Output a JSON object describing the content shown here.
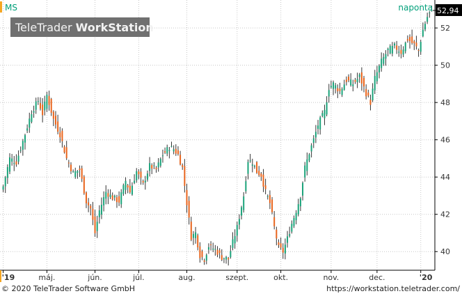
{
  "symbol": "MS",
  "interval_label": "naponta",
  "watermark": {
    "light": "TeleTrader ",
    "bold": "WorkStation"
  },
  "last_price_label": "52,94",
  "footer": {
    "copyright": "© 2020 TeleTrader Software GmbH",
    "url": "https://workstation.teletrader.com/"
  },
  "colors": {
    "up": "#1aa37a",
    "down": "#e8641c",
    "grid": "#c8c8c8",
    "axis_bar": "#f5a623",
    "label_box": "#000000",
    "label_text": "#ffffff",
    "watermark_bg": "#707070",
    "symbol_text": "#00a07a"
  },
  "chart_data": {
    "type": "candlestick",
    "ylim": [
      39,
      53.5
    ],
    "y_ticks": [
      {
        "v": 40,
        "label": "40"
      },
      {
        "v": 42,
        "label": "42"
      },
      {
        "v": 44,
        "label": "44"
      },
      {
        "v": 46,
        "label": "46"
      },
      {
        "v": 48,
        "label": "48"
      },
      {
        "v": 50,
        "label": "50"
      },
      {
        "v": 52,
        "label": "52"
      }
    ],
    "x_ticks": [
      {
        "label": "'19",
        "index": 0
      },
      {
        "label": "máj.",
        "index": 20
      },
      {
        "label": "jún.",
        "index": 42
      },
      {
        "label": "júl.",
        "index": 62
      },
      {
        "label": "aug.",
        "index": 84
      },
      {
        "label": "szept.",
        "index": 107
      },
      {
        "label": "okt.",
        "index": 127
      },
      {
        "label": "nov.",
        "index": 150
      },
      {
        "label": "dec.",
        "index": 171
      },
      {
        "label": "'20",
        "index": 191
      }
    ],
    "anchors": [
      [
        0,
        43.5
      ],
      [
        3,
        45.0
      ],
      [
        6,
        44.8
      ],
      [
        10,
        46.3
      ],
      [
        13,
        47.5
      ],
      [
        16,
        48.1
      ],
      [
        18,
        47.4
      ],
      [
        20,
        48.4
      ],
      [
        23,
        47.1
      ],
      [
        26,
        46.3
      ],
      [
        29,
        45.0
      ],
      [
        32,
        44.2
      ],
      [
        35,
        44.4
      ],
      [
        38,
        42.7
      ],
      [
        40,
        42.3
      ],
      [
        42,
        41.0
      ],
      [
        44,
        42.2
      ],
      [
        47,
        43.2
      ],
      [
        50,
        42.9
      ],
      [
        53,
        42.7
      ],
      [
        56,
        43.8
      ],
      [
        58,
        43.2
      ],
      [
        61,
        44.3
      ],
      [
        64,
        43.6
      ],
      [
        67,
        44.6
      ],
      [
        70,
        44.4
      ],
      [
        73,
        45.2
      ],
      [
        76,
        45.6
      ],
      [
        78,
        45.5
      ],
      [
        80,
        45.2
      ],
      [
        82,
        44.5
      ],
      [
        84,
        42.6
      ],
      [
        86,
        40.8
      ],
      [
        88,
        41.0
      ],
      [
        90,
        39.8
      ],
      [
        92,
        39.6
      ],
      [
        94,
        40.3
      ],
      [
        97,
        40.1
      ],
      [
        100,
        39.7
      ],
      [
        103,
        39.6
      ],
      [
        105,
        40.5
      ],
      [
        107,
        41.3
      ],
      [
        110,
        43.0
      ],
      [
        112,
        44.9
      ],
      [
        114,
        44.8
      ],
      [
        116,
        44.3
      ],
      [
        118,
        44.1
      ],
      [
        120,
        43.2
      ],
      [
        122,
        42.6
      ],
      [
        124,
        41.3
      ],
      [
        126,
        40.2
      ],
      [
        128,
        40.0
      ],
      [
        130,
        40.7
      ],
      [
        132,
        41.5
      ],
      [
        134,
        42.2
      ],
      [
        136,
        43.0
      ],
      [
        138,
        44.5
      ],
      [
        140,
        45.3
      ],
      [
        142,
        46.0
      ],
      [
        144,
        46.8
      ],
      [
        147,
        47.5
      ],
      [
        149,
        48.8
      ],
      [
        151,
        49.0
      ],
      [
        154,
        48.6
      ],
      [
        157,
        49.2
      ],
      [
        160,
        49.0
      ],
      [
        163,
        49.4
      ],
      [
        166,
        48.5
      ],
      [
        168,
        48.0
      ],
      [
        170,
        49.3
      ],
      [
        173,
        50.2
      ],
      [
        176,
        50.8
      ],
      [
        179,
        51.0
      ],
      [
        182,
        50.7
      ],
      [
        185,
        51.4
      ],
      [
        188,
        51.1
      ],
      [
        190,
        50.8
      ],
      [
        192,
        51.9
      ],
      [
        194,
        52.6
      ],
      [
        196,
        52.94
      ]
    ]
  }
}
